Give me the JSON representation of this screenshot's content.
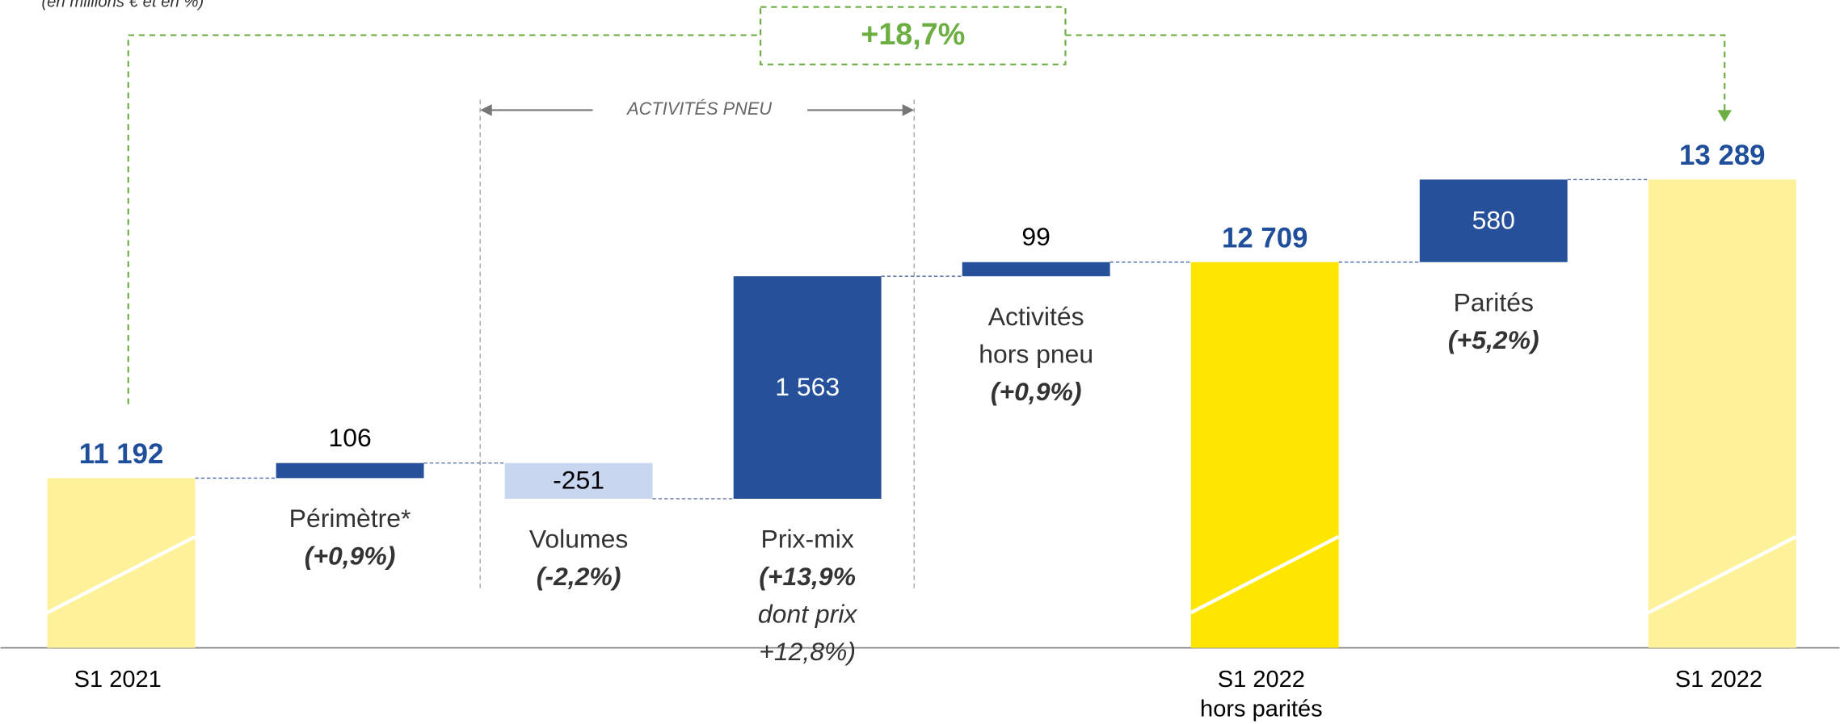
{
  "chart_data": {
    "type": "waterfall",
    "subtitle": "(en millions € et en %)",
    "categories": [
      [
        "S1 2021"
      ],
      [
        "Périmètre*"
      ],
      [
        "Volumes"
      ],
      [
        "Prix-mix"
      ],
      [
        "Activités",
        "hors pneu"
      ],
      [
        "S1 2022",
        "hors parités"
      ],
      [
        "Parités"
      ],
      [
        "S1 2022"
      ]
    ],
    "notes": [
      null,
      [
        "(+0,9%)"
      ],
      [
        "(-2,2%)"
      ],
      [
        "(+13,9%",
        "dont prix",
        "+12,8%)"
      ],
      [
        "(+0,9%)"
      ],
      null,
      [
        "(+5,2%)"
      ],
      null
    ],
    "values": [
      11192,
      106,
      -251,
      1563,
      99,
      12709,
      580,
      13289
    ],
    "value_labels": [
      "11 192",
      "106",
      "-251",
      "1 563",
      "99",
      "12 709",
      "580",
      "13 289"
    ],
    "bar_types": [
      "total",
      "delta",
      "delta",
      "delta",
      "delta",
      "total",
      "delta",
      "total"
    ],
    "colors": [
      "#fdf29a",
      "#26509a",
      "#c9d6f0",
      "#26509a",
      "#26509a",
      "#ffe600",
      "#26509a",
      "#fdf29a"
    ],
    "ylim": [
      10000,
      14550
    ],
    "annotations": {
      "growth": "+18,7%",
      "bracket": "ACTIVITÉS PNEU"
    }
  }
}
